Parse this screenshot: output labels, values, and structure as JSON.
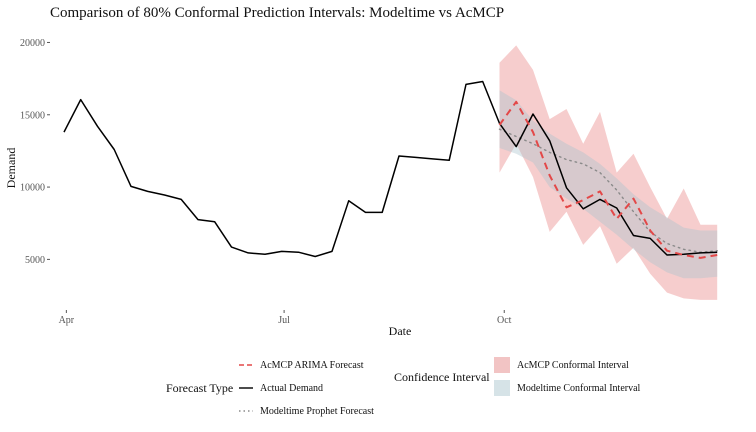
{
  "chart_data": {
    "type": "line",
    "title": "Comparison of 80% Conformal Prediction Intervals: Modeltime vs AcMCP",
    "xlabel": "Date",
    "ylabel": "Demand",
    "x_ticks": [
      {
        "label": "Apr",
        "date": "2023-04-01"
      },
      {
        "label": "Jul",
        "date": "2023-07-01"
      },
      {
        "label": "Oct",
        "date": "2023-10-01"
      }
    ],
    "y_ticks": [
      {
        "label": "5000",
        "value": 5000
      },
      {
        "label": "10000",
        "value": 10000
      },
      {
        "label": "15000",
        "value": 15000
      },
      {
        "label": "20000",
        "value": 20000
      }
    ],
    "xlim": [
      "2023-03-26",
      "2023-12-31"
    ],
    "ylim": [
      1500,
      21000
    ],
    "grid": false,
    "series": [
      {
        "name": "Actual Demand",
        "style": "solid",
        "color": "#000000",
        "points": [
          [
            "2023-03-31",
            13800
          ],
          [
            "2023-04-07",
            16050
          ],
          [
            "2023-04-14",
            14200
          ],
          [
            "2023-04-21",
            12600
          ],
          [
            "2023-04-28",
            10050
          ],
          [
            "2023-05-05",
            9700
          ],
          [
            "2023-05-12",
            9450
          ],
          [
            "2023-05-19",
            9150
          ],
          [
            "2023-05-26",
            7750
          ],
          [
            "2023-06-02",
            7600
          ],
          [
            "2023-06-09",
            5850
          ],
          [
            "2023-06-16",
            5450
          ],
          [
            "2023-06-23",
            5350
          ],
          [
            "2023-06-30",
            5550
          ],
          [
            "2023-07-07",
            5500
          ],
          [
            "2023-07-14",
            5200
          ],
          [
            "2023-07-21",
            5550
          ],
          [
            "2023-07-28",
            9050
          ],
          [
            "2023-08-04",
            8250
          ],
          [
            "2023-08-11",
            8250
          ],
          [
            "2023-08-18",
            12150
          ],
          [
            "2023-08-25",
            12050
          ],
          [
            "2023-09-01",
            11950
          ],
          [
            "2023-09-08",
            11850
          ],
          [
            "2023-09-15",
            17100
          ],
          [
            "2023-09-22",
            17300
          ],
          [
            "2023-09-29",
            14400
          ],
          [
            "2023-10-06",
            12800
          ],
          [
            "2023-10-13",
            15050
          ],
          [
            "2023-10-20",
            13200
          ],
          [
            "2023-10-27",
            9950
          ],
          [
            "2023-11-03",
            8500
          ],
          [
            "2023-11-10",
            9150
          ],
          [
            "2023-11-17",
            8550
          ],
          [
            "2023-11-24",
            6650
          ],
          [
            "2023-12-01",
            6450
          ],
          [
            "2023-12-08",
            5300
          ],
          [
            "2023-12-15",
            5350
          ],
          [
            "2023-12-22",
            5450
          ],
          [
            "2023-12-29",
            5500
          ]
        ]
      },
      {
        "name": "AcMCP ARIMA Forecast",
        "style": "dashed",
        "color": "#e34848",
        "points": [
          [
            "2023-09-29",
            14300
          ],
          [
            "2023-10-06",
            15900
          ],
          [
            "2023-10-13",
            13800
          ],
          [
            "2023-10-20",
            10800
          ],
          [
            "2023-10-27",
            8600
          ],
          [
            "2023-11-03",
            9100
          ],
          [
            "2023-11-10",
            9700
          ],
          [
            "2023-11-17",
            7800
          ],
          [
            "2023-11-24",
            9200
          ],
          [
            "2023-12-01",
            7000
          ],
          [
            "2023-12-08",
            5600
          ],
          [
            "2023-12-15",
            5300
          ],
          [
            "2023-12-22",
            5100
          ],
          [
            "2023-12-29",
            5300
          ]
        ]
      },
      {
        "name": "Modeltime Prophet Forecast",
        "style": "dotted",
        "color": "#8a8a8a",
        "points": [
          [
            "2023-09-29",
            14000
          ],
          [
            "2023-10-06",
            13500
          ],
          [
            "2023-10-13",
            13000
          ],
          [
            "2023-10-20",
            12400
          ],
          [
            "2023-10-27",
            11900
          ],
          [
            "2023-11-03",
            11600
          ],
          [
            "2023-11-10",
            11000
          ],
          [
            "2023-11-17",
            9800
          ],
          [
            "2023-11-24",
            8300
          ],
          [
            "2023-12-01",
            6900
          ],
          [
            "2023-12-08",
            6100
          ],
          [
            "2023-12-15",
            5700
          ],
          [
            "2023-12-22",
            5500
          ],
          [
            "2023-12-29",
            5600
          ]
        ]
      }
    ],
    "intervals": [
      {
        "name": "AcMCP Conformal Interval",
        "color": "#e46f6f",
        "opacity": 0.35,
        "points": [
          [
            "2023-09-29",
            11000,
            18600
          ],
          [
            "2023-10-06",
            13000,
            19800
          ],
          [
            "2023-10-13",
            10700,
            18100
          ],
          [
            "2023-10-20",
            6900,
            14700
          ],
          [
            "2023-10-27",
            8300,
            15400
          ],
          [
            "2023-11-03",
            6000,
            13000
          ],
          [
            "2023-11-10",
            7300,
            15200
          ],
          [
            "2023-11-17",
            4700,
            11000
          ],
          [
            "2023-11-24",
            5800,
            12300
          ],
          [
            "2023-12-01",
            4000,
            10000
          ],
          [
            "2023-12-08",
            2700,
            7800
          ],
          [
            "2023-12-15",
            2300,
            9900
          ],
          [
            "2023-12-22",
            2200,
            7400
          ],
          [
            "2023-12-29",
            2200,
            7400
          ]
        ]
      },
      {
        "name": "Modeltime Conformal Interval",
        "color": "#a9c4ce",
        "opacity": 0.4,
        "points": [
          [
            "2023-09-29",
            12700,
            16700
          ],
          [
            "2023-10-06",
            12300,
            16000
          ],
          [
            "2023-10-13",
            11700,
            14600
          ],
          [
            "2023-10-20",
            10000,
            13700
          ],
          [
            "2023-10-27",
            9200,
            13000
          ],
          [
            "2023-11-03",
            8500,
            12400
          ],
          [
            "2023-11-10",
            7600,
            11600
          ],
          [
            "2023-11-17",
            6700,
            10600
          ],
          [
            "2023-11-24",
            5700,
            9500
          ],
          [
            "2023-12-01",
            4800,
            8600
          ],
          [
            "2023-12-08",
            4100,
            7900
          ],
          [
            "2023-12-15",
            3700,
            7200
          ],
          [
            "2023-12-22",
            3700,
            7000
          ],
          [
            "2023-12-29",
            3800,
            7000
          ]
        ]
      }
    ],
    "legend": {
      "placement": "bottom",
      "forecast_type": {
        "title": "Forecast Type",
        "items": [
          "AcMCP ARIMA Forecast",
          "Actual Demand",
          "Modeltime Prophet Forecast"
        ]
      },
      "confidence_interval": {
        "title": "Confidence Interval",
        "items": [
          "AcMCP Conformal Interval",
          "Modeltime Conformal Interval"
        ]
      }
    }
  }
}
